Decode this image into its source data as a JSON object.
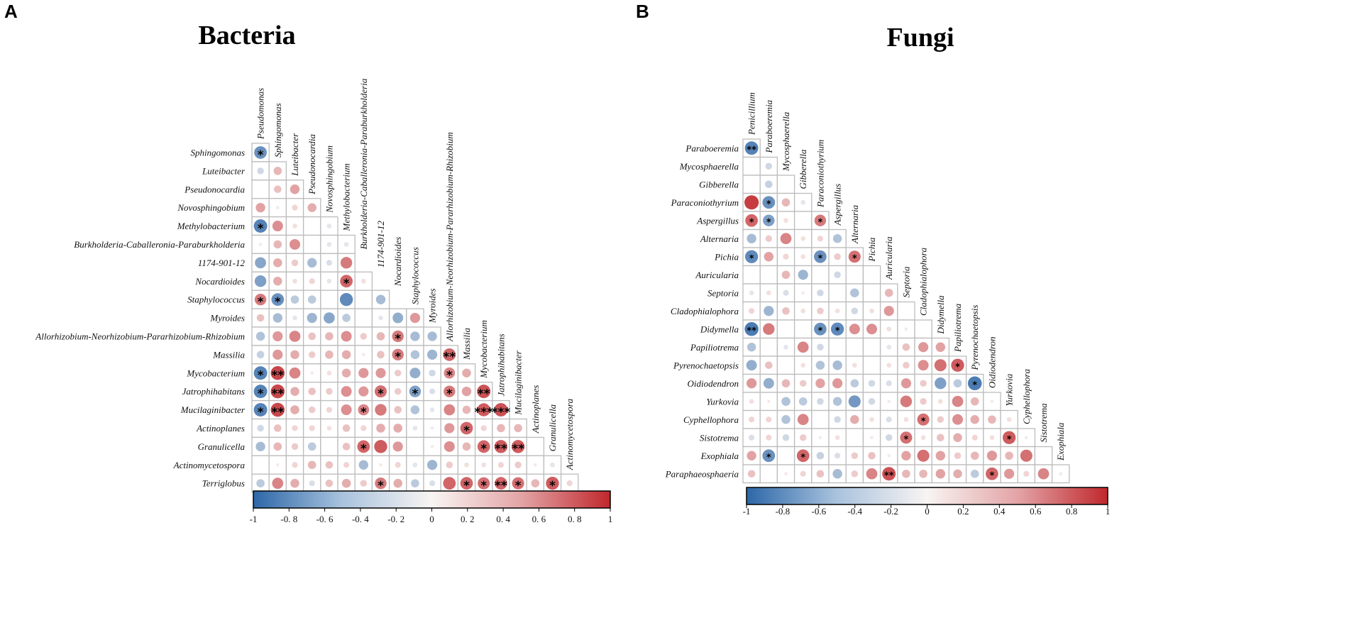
{
  "palette": {
    "neg": "#2d67a8",
    "mid": "#f8f4f2",
    "pos": "#c0282d"
  },
  "chart_data": [
    {
      "type": "heatmap",
      "panel_letter": "A",
      "title": "Bacteria",
      "genera": [
        "Pseudomonas",
        "Sphingomonas",
        "Luteibacter",
        "Pseudonocardia",
        "Novosphingobium",
        "Methylobacterium",
        "Burkholderia-Caballeronia-Paraburkholderia",
        "1174-901-12",
        "Nocardioides",
        "Staphylococcus",
        "Myroides",
        "Allorhizobium-Neorhizobium-Pararhizobium-Rhizobium",
        "Massilia",
        "Mycobacterium",
        "Jatrophihabitans",
        "Mucilaginibacter",
        "Actinoplanes",
        "Granulicella",
        "Actinomycetospora",
        "Terriglobus"
      ],
      "values": [
        [
          -0.7
        ],
        [
          -0.2,
          0.3
        ],
        [
          0.0,
          0.25,
          0.4
        ],
        [
          0.4,
          0.05,
          0.15,
          0.35
        ],
        [
          -0.8,
          0.5,
          0.1,
          0.0,
          -0.1
        ],
        [
          -0.05,
          0.3,
          0.5,
          0.0,
          -0.1,
          -0.1
        ],
        [
          -0.55,
          0.35,
          0.2,
          -0.4,
          -0.15,
          0.6
        ],
        [
          -0.6,
          0.35,
          0.1,
          0.15,
          -0.1,
          0.7,
          0.1
        ],
        [
          0.6,
          -0.7,
          -0.3,
          -0.3,
          0.0,
          -0.75,
          0.0,
          -0.4
        ],
        [
          0.25,
          -0.4,
          -0.1,
          -0.45,
          -0.55,
          -0.3,
          0.0,
          -0.1,
          -0.5,
          0.45
        ],
        [
          -0.35,
          0.45,
          0.55,
          0.25,
          0.3,
          0.5,
          0.2,
          0.3,
          0.6,
          -0.4,
          -0.4
        ],
        [
          -0.25,
          0.45,
          0.35,
          0.2,
          0.3,
          0.35,
          0.05,
          0.25,
          0.6,
          -0.35,
          -0.45,
          0.7
        ],
        [
          -0.8,
          0.85,
          0.55,
          0.05,
          0.1,
          0.35,
          0.45,
          0.45,
          0.2,
          -0.5,
          -0.2,
          0.55,
          0.35
        ],
        [
          -0.8,
          0.85,
          0.35,
          0.25,
          0.2,
          0.5,
          0.45,
          0.65,
          0.2,
          -0.6,
          -0.15,
          0.6,
          0.4,
          0.8
        ],
        [
          -0.8,
          0.85,
          0.35,
          0.2,
          0.15,
          0.5,
          0.55,
          0.6,
          0.25,
          -0.35,
          -0.1,
          0.55,
          0.3,
          0.75,
          0.8
        ],
        [
          -0.2,
          0.25,
          0.15,
          0.15,
          0.1,
          0.25,
          0.15,
          0.35,
          0.35,
          -0.1,
          -0.05,
          0.45,
          0.7,
          0.15,
          0.3,
          0.3
        ],
        [
          -0.4,
          0.3,
          0.2,
          -0.3,
          0.0,
          0.25,
          0.7,
          0.75,
          0.45,
          0.0,
          0.05,
          0.5,
          0.3,
          0.7,
          0.75,
          0.75,
          0.0
        ],
        [
          0.0,
          0.05,
          0.15,
          0.3,
          0.25,
          0.15,
          -0.4,
          0.05,
          0.15,
          -0.1,
          -0.45,
          0.2,
          0.1,
          0.1,
          0.15,
          0.2,
          0.05,
          -0.1
        ],
        [
          -0.3,
          0.55,
          0.35,
          -0.15,
          0.25,
          0.35,
          0.2,
          0.6,
          0.35,
          -0.3,
          -0.15,
          0.7,
          0.7,
          0.65,
          0.7,
          0.65,
          0.3,
          0.75,
          0.15
        ]
      ],
      "stars": [
        [
          1
        ],
        [
          0,
          0
        ],
        [
          0,
          0,
          0
        ],
        [
          0,
          0,
          0,
          0
        ],
        [
          1,
          0,
          0,
          0,
          0
        ],
        [
          0,
          0,
          0,
          0,
          0,
          0
        ],
        [
          0,
          0,
          0,
          0,
          0,
          0,
          0
        ],
        [
          0,
          0,
          0,
          0,
          0,
          1,
          0,
          0
        ],
        [
          1,
          1,
          0,
          0,
          0,
          0,
          0,
          0,
          0
        ],
        [
          0,
          0,
          0,
          0,
          0,
          0,
          0,
          0,
          0,
          0
        ],
        [
          0,
          0,
          0,
          0,
          0,
          0,
          0,
          0,
          1,
          0,
          0
        ],
        [
          0,
          0,
          0,
          0,
          0,
          0,
          0,
          0,
          1,
          0,
          0,
          2
        ],
        [
          1,
          2,
          0,
          0,
          0,
          0,
          0,
          0,
          0,
          0,
          0,
          1,
          0
        ],
        [
          1,
          2,
          0,
          0,
          0,
          0,
          0,
          1,
          0,
          1,
          0,
          1,
          0,
          2
        ],
        [
          1,
          2,
          0,
          0,
          0,
          0,
          1,
          0,
          0,
          0,
          0,
          0,
          0,
          3,
          3
        ],
        [
          0,
          0,
          0,
          0,
          0,
          0,
          0,
          0,
          0,
          0,
          0,
          0,
          1,
          0,
          0,
          0
        ],
        [
          0,
          0,
          0,
          0,
          0,
          0,
          1,
          0,
          0,
          0,
          0,
          0,
          0,
          1,
          2,
          2,
          0
        ],
        [
          0,
          0,
          0,
          0,
          0,
          0,
          0,
          0,
          0,
          0,
          0,
          0,
          0,
          0,
          0,
          0,
          0,
          0
        ],
        [
          0,
          0,
          0,
          0,
          0,
          0,
          0,
          1,
          0,
          0,
          0,
          0,
          1,
          1,
          2,
          1,
          0,
          1,
          0
        ]
      ],
      "colorbar": {
        "range": [
          -1,
          1
        ],
        "tick_labels": [
          "-1",
          "-0. 8",
          "-0. 6",
          "-0. 4",
          "-0. 2",
          "0",
          "0. 2",
          "0. 4",
          "0. 6",
          "0. 8",
          "1"
        ]
      }
    },
    {
      "type": "heatmap",
      "panel_letter": "B",
      "title": "Fungi",
      "genera": [
        "Penicillium",
        "Paraboeremia",
        "Mycosphaerella",
        "Gibberella",
        "Paraconiothyrium",
        "Aspergillus",
        "Alternaria",
        "Pichia",
        "Auricularia",
        "Septoria",
        "Cladophialophora",
        "Didymella",
        "Papiliotrema",
        "Pyrenochaetopsis",
        "Oidiodendron",
        "Yurkovia",
        "Cyphellophora",
        "Sistotrema",
        "Exophiala",
        "Paraphaeosphaeria"
      ],
      "values": [
        [
          -0.8
        ],
        [
          0.0,
          -0.2
        ],
        [
          0.0,
          -0.25,
          0.0
        ],
        [
          0.9,
          -0.7,
          0.3,
          -0.1
        ],
        [
          0.7,
          -0.6,
          0.1,
          0.0,
          0.6
        ],
        [
          -0.4,
          0.2,
          0.55,
          0.1,
          0.15,
          -0.35
        ],
        [
          -0.75,
          0.4,
          0.15,
          0.1,
          -0.7,
          0.2,
          0.65
        ],
        [
          0.0,
          0.0,
          0.3,
          -0.45,
          0.0,
          -0.2,
          0.0,
          0.0
        ],
        [
          -0.1,
          0.1,
          -0.15,
          0.05,
          -0.2,
          0.0,
          -0.35,
          0.0,
          0.3
        ],
        [
          0.15,
          -0.45,
          0.25,
          0.1,
          0.2,
          0.1,
          -0.2,
          0.1,
          0.45,
          0.0
        ],
        [
          -0.85,
          0.6,
          0.0,
          0.0,
          -0.7,
          -0.75,
          0.5,
          0.5,
          0.1,
          0.05,
          0.0
        ],
        [
          -0.35,
          0.0,
          -0.1,
          0.55,
          -0.2,
          0.0,
          0.0,
          0.0,
          -0.1,
          0.25,
          0.45,
          0.4
        ],
        [
          -0.5,
          0.25,
          0.0,
          0.1,
          -0.35,
          -0.4,
          0.1,
          0.0,
          0.1,
          0.2,
          0.5,
          0.65,
          0.75
        ],
        [
          0.45,
          -0.5,
          0.3,
          0.2,
          0.4,
          0.45,
          -0.3,
          -0.2,
          -0.15,
          0.45,
          0.2,
          -0.6,
          -0.3,
          -0.85
        ],
        [
          0.1,
          0.05,
          -0.35,
          -0.3,
          -0.2,
          -0.35,
          -0.65,
          -0.2,
          0.05,
          0.6,
          0.2,
          0.1,
          0.55,
          0.3,
          0.05
        ],
        [
          0.15,
          0.15,
          -0.35,
          0.55,
          0.0,
          -0.2,
          0.35,
          0.1,
          -0.15,
          0.1,
          0.65,
          0.2,
          0.5,
          0.35,
          0.3,
          0.1
        ],
        [
          -0.15,
          0.15,
          -0.2,
          0.2,
          -0.05,
          0.1,
          0.0,
          0.05,
          -0.2,
          0.65,
          0.1,
          0.25,
          0.35,
          0.15,
          0.1,
          0.75,
          0.05
        ],
        [
          0.4,
          -0.7,
          0.0,
          0.7,
          -0.25,
          -0.15,
          0.2,
          0.25,
          0.05,
          0.4,
          0.65,
          0.4,
          0.2,
          0.3,
          0.45,
          0.3,
          0.65,
          0.0
        ],
        [
          0.25,
          0.0,
          0.05,
          0.15,
          0.25,
          -0.4,
          0.2,
          0.55,
          0.8,
          0.3,
          0.3,
          0.4,
          0.35,
          -0.3,
          0.7,
          0.45,
          0.15,
          0.55,
          0.05
        ]
      ],
      "stars": [
        [
          2
        ],
        [
          0,
          0
        ],
        [
          0,
          0,
          0
        ],
        [
          0,
          1,
          0,
          0
        ],
        [
          1,
          1,
          0,
          0,
          1
        ],
        [
          0,
          0,
          0,
          0,
          0,
          0
        ],
        [
          1,
          0,
          0,
          0,
          1,
          0,
          1
        ],
        [
          0,
          0,
          0,
          0,
          0,
          0,
          0,
          0
        ],
        [
          0,
          0,
          0,
          0,
          0,
          0,
          0,
          0,
          0
        ],
        [
          0,
          0,
          0,
          0,
          0,
          0,
          0,
          0,
          0,
          0
        ],
        [
          2,
          0,
          0,
          0,
          1,
          1,
          0,
          0,
          0,
          0,
          0
        ],
        [
          0,
          0,
          0,
          0,
          0,
          0,
          0,
          0,
          0,
          0,
          0,
          0
        ],
        [
          0,
          0,
          0,
          0,
          0,
          0,
          0,
          0,
          0,
          0,
          0,
          0,
          1
        ],
        [
          0,
          0,
          0,
          0,
          0,
          0,
          0,
          0,
          0,
          0,
          0,
          0,
          0,
          1
        ],
        [
          0,
          0,
          0,
          0,
          0,
          0,
          0,
          0,
          0,
          0,
          0,
          0,
          0,
          0,
          0
        ],
        [
          0,
          0,
          0,
          0,
          0,
          0,
          0,
          0,
          0,
          0,
          1,
          0,
          0,
          0,
          0,
          0
        ],
        [
          0,
          0,
          0,
          0,
          0,
          0,
          0,
          0,
          0,
          1,
          0,
          0,
          0,
          0,
          0,
          1,
          0
        ],
        [
          0,
          1,
          0,
          1,
          0,
          0,
          0,
          0,
          0,
          0,
          0,
          0,
          0,
          0,
          0,
          0,
          0,
          0
        ],
        [
          0,
          0,
          0,
          0,
          0,
          0,
          0,
          0,
          2,
          0,
          0,
          0,
          0,
          0,
          1,
          0,
          0,
          0,
          0
        ]
      ],
      "colorbar": {
        "range": [
          -1,
          1
        ],
        "tick_labels": [
          "-1",
          "-0.8",
          "-0.6",
          "-0.4",
          "-0.2",
          "0",
          "0.2",
          "0.4",
          "0.6",
          "0.8",
          "1"
        ]
      }
    }
  ]
}
